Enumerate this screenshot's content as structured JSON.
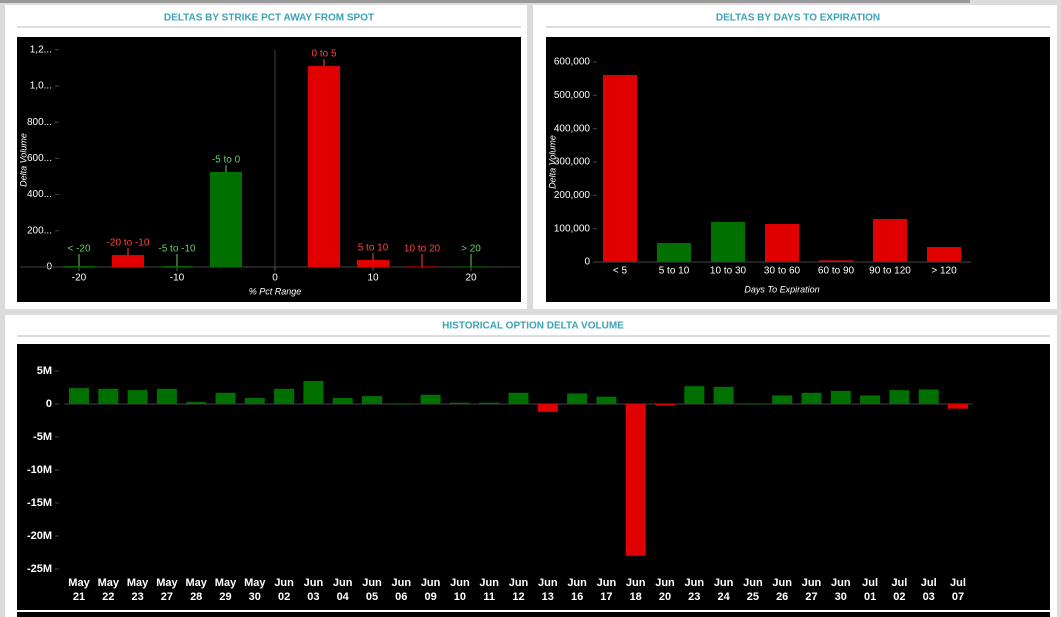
{
  "chart_data": [
    {
      "type": "bar",
      "title": "DELTAS BY STRIKE PCT AWAY FROM SPOT",
      "y_label": "Delta Volume",
      "x_label": "% Pct Range",
      "categories": [
        "< -20",
        "-20 to -10",
        "-5 to -10",
        "-5 to 0",
        "0 to 5",
        "5 to 10",
        "10 to 20",
        "> 20"
      ],
      "x": [
        -20,
        -15,
        -10,
        -5,
        5,
        10,
        15,
        20
      ],
      "values": [
        5,
        66,
        5,
        525,
        1110,
        39,
        3,
        3
      ],
      "colors": [
        "#007000",
        "#e00000",
        "#007000",
        "#007000",
        "#e00000",
        "#e00000",
        "#e00000",
        "#007000"
      ],
      "label_colors": [
        "#66cc66",
        "#ff4040",
        "#66cc66",
        "#66cc66",
        "#ff4040",
        "#ff4040",
        "#ff4040",
        "#66cc66"
      ],
      "xlim": [
        -26,
        25
      ],
      "xticks": [
        -20,
        -10,
        0,
        10,
        20
      ],
      "ylim": [
        0,
        1250
      ],
      "yticks": [
        0,
        {
          "value": 200,
          "label": "200..."
        },
        {
          "value": 400,
          "label": "400..."
        },
        {
          "value": 600,
          "label": "600..."
        },
        {
          "value": 800,
          "label": "800..."
        },
        {
          "value": 1000,
          "label": "1,0..."
        },
        {
          "value": 1200,
          "label": "1,2..."
        }
      ]
    },
    {
      "type": "bar",
      "title": "DELTAS BY DAYS TO EXPIRATION",
      "y_label": "Delta Volume",
      "x_label": "Days To Expiration",
      "categories": [
        "< 5",
        "5 to 10",
        "10 to 30",
        "30 to 60",
        "60 to 90",
        "90 to 120",
        "> 120"
      ],
      "values": [
        561000,
        57000,
        120000,
        114000,
        5000,
        129000,
        45000
      ],
      "colors": [
        "#e00000",
        "#007000",
        "#007000",
        "#e00000",
        "#e00000",
        "#e00000",
        "#e00000"
      ],
      "ylim": [
        0,
        620000
      ],
      "yticks": [
        0,
        {
          "value": 100000,
          "label": "100,000"
        },
        {
          "value": 200000,
          "label": "200,000"
        },
        {
          "value": 300000,
          "label": "300,000"
        },
        {
          "value": 400000,
          "label": "400,000"
        },
        {
          "value": 500000,
          "label": "500,000"
        },
        {
          "value": 600000,
          "label": "600,000"
        }
      ]
    },
    {
      "type": "bar",
      "title": "HISTORICAL OPTION DELTA VOLUME",
      "categories": [
        "May 21",
        "May 22",
        "May 23",
        "May 27",
        "May 28",
        "May 29",
        "May 30",
        "Jun 02",
        "Jun 03",
        "Jun 04",
        "Jun 05",
        "Jun 06",
        "Jun 09",
        "Jun 10",
        "Jun 11",
        "Jun 12",
        "Jun 13",
        "Jun 16",
        "Jun 17",
        "Jun 18",
        "Jun 20",
        "Jun 23",
        "Jun 24",
        "Jun 25",
        "Jun 26",
        "Jun 27",
        "Jun 30",
        "Jul 01",
        "Jul 02",
        "Jul 03",
        "Jul 07"
      ],
      "values": [
        2400000,
        2300000,
        2100000,
        2300000,
        300000,
        1700000,
        900000,
        2300000,
        3500000,
        900000,
        1200000,
        100000,
        1400000,
        200000,
        200000,
        1700000,
        -1200000,
        1600000,
        1100000,
        -23000000,
        -200000,
        2700000,
        2600000,
        100000,
        1300000,
        1700000,
        2000000,
        1300000,
        2100000,
        2200000,
        -700000
      ],
      "positive_color": "#007000",
      "negative_color": "#e00000",
      "ylim": [
        -26000000,
        8000000
      ],
      "yticks": [
        {
          "value": 5000000,
          "label": "5M"
        },
        0,
        {
          "value": -5000000,
          "label": "-5M"
        },
        {
          "value": -10000000,
          "label": "-10M"
        },
        {
          "value": -15000000,
          "label": "-15M"
        },
        {
          "value": -20000000,
          "label": "-20M"
        },
        {
          "value": -25000000,
          "label": "-25M"
        }
      ]
    }
  ]
}
